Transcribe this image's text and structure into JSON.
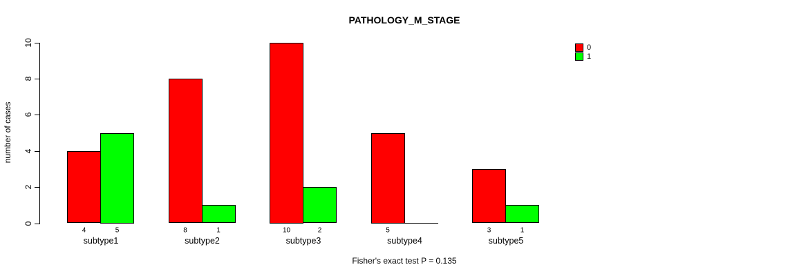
{
  "chart_data": {
    "type": "bar",
    "title": "PATHOLOGY_M_STAGE",
    "ylabel": "number of cases",
    "xlabel": "",
    "annotation": "Fisher's exact test P = 0.135",
    "ylim": [
      0,
      10
    ],
    "yticks": [
      0,
      2,
      4,
      6,
      8,
      10
    ],
    "grid": false,
    "legend_position": "top-right",
    "categories": [
      "subtype1",
      "subtype2",
      "subtype3",
      "subtype4",
      "subtype5"
    ],
    "series": [
      {
        "name": "0",
        "color": "#FF0000",
        "values": [
          4,
          8,
          10,
          5,
          3
        ]
      },
      {
        "name": "1",
        "color": "#00FF00",
        "values": [
          5,
          1,
          2,
          0,
          1
        ]
      }
    ],
    "count_labels": [
      [
        "4",
        "5"
      ],
      [
        "8",
        "1"
      ],
      [
        "10",
        "2"
      ],
      [
        "5",
        null
      ],
      [
        "3",
        "1"
      ]
    ]
  },
  "colors": {
    "background": "#FFFFFF",
    "axis": "#000000",
    "text": "#000000"
  }
}
